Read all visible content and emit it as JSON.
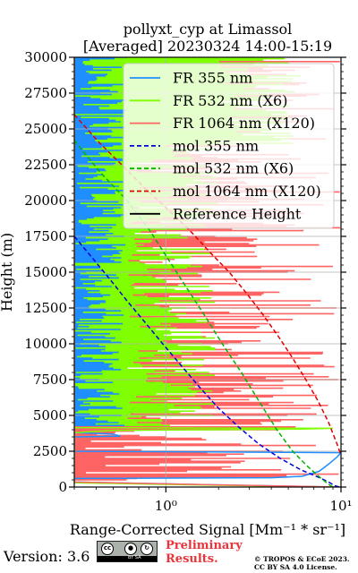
{
  "chart_data": {
    "type": "line",
    "title_line1": "pollyxt_cyp at Limassol",
    "title_line2": "[Averaged] 20230324 14:00-15:19",
    "xlabel": "Range-Corrected Signal [Mm⁻¹ * sr⁻¹]",
    "ylabel": "Height (m)",
    "xscale": "log",
    "xlim": [
      0.3,
      10
    ],
    "ylim": [
      0,
      30000
    ],
    "x_ticks": [
      {
        "value": 1,
        "label": "10⁰"
      },
      {
        "value": 10,
        "label": "10¹"
      }
    ],
    "y_ticks": [
      0,
      2500,
      5000,
      7500,
      10000,
      12500,
      15000,
      17500,
      20000,
      22500,
      25000,
      27500,
      30000
    ],
    "grid": true,
    "legend_position": "upper-right",
    "series": [
      {
        "name": "FR 355 nm",
        "color": "#1f8fff",
        "style": "solid",
        "points": [
          [
            9.5,
            0
          ],
          [
            2,
            150
          ],
          [
            0.3,
            350
          ],
          [
            0.3,
            600
          ],
          [
            4,
            650
          ],
          [
            6,
            750
          ],
          [
            7.5,
            1100
          ],
          [
            8.5,
            1600
          ],
          [
            9.5,
            2100
          ],
          [
            10,
            2400
          ],
          [
            0.3,
            2500
          ],
          [
            0.3,
            3500
          ],
          [
            0.55,
            3550
          ],
          [
            0.5,
            3700
          ],
          [
            0.3,
            3800
          ],
          [
            0.3,
            4000
          ],
          [
            0.3,
            30000
          ]
        ]
      },
      {
        "name": "FR 532 nm (X6)",
        "color": "#7fff00",
        "style": "solid",
        "points": [
          [
            9,
            0
          ],
          [
            1.5,
            150
          ],
          [
            0.3,
            300
          ],
          [
            0.3,
            3800
          ],
          [
            0.5,
            3950
          ],
          [
            1.8,
            4000
          ],
          [
            6,
            4050
          ],
          [
            9,
            4100
          ],
          [
            0.3,
            4150
          ],
          [
            0.3,
            30000
          ]
        ]
      },
      {
        "name": "FR 1064 nm (X120)",
        "color": "#ff6464",
        "style": "solid",
        "points": [
          [
            10,
            0
          ],
          [
            2,
            150
          ],
          [
            0.3,
            350
          ],
          [
            0.3,
            30000
          ]
        ]
      },
      {
        "name": "mol 355 nm",
        "color": "#0000dd",
        "style": "dashed",
        "points": [
          [
            0.3,
            17500
          ],
          [
            0.38,
            16000
          ],
          [
            0.48,
            14500
          ],
          [
            0.6,
            13000
          ],
          [
            0.76,
            11500
          ],
          [
            0.96,
            10000
          ],
          [
            1.22,
            8500
          ],
          [
            1.55,
            7000
          ],
          [
            2.0,
            5500
          ],
          [
            2.6,
            4200
          ],
          [
            3.4,
            3000
          ],
          [
            4.5,
            2000
          ],
          [
            5.9,
            1200
          ],
          [
            7.4,
            700
          ],
          [
            8.5,
            350
          ],
          [
            9.2,
            100
          ],
          [
            9.8,
            0
          ]
        ]
      },
      {
        "name": "mol 532 nm (X6)",
        "color": "#00b400",
        "style": "dashed",
        "points": [
          [
            0.3,
            24200
          ],
          [
            0.42,
            22000
          ],
          [
            0.6,
            20000
          ],
          [
            0.8,
            18000
          ],
          [
            1.02,
            16000
          ],
          [
            1.3,
            14000
          ],
          [
            1.66,
            12000
          ],
          [
            2.1,
            10000
          ],
          [
            2.7,
            8000
          ],
          [
            3.4,
            6000
          ],
          [
            4.3,
            4000
          ],
          [
            5.3,
            2500
          ],
          [
            6.5,
            1400
          ],
          [
            7.7,
            600
          ],
          [
            8.6,
            150
          ],
          [
            9.0,
            0
          ]
        ]
      },
      {
        "name": "mol 1064 nm (X120)",
        "color": "#dd0000",
        "style": "dashed",
        "points": [
          [
            0.3,
            26000
          ],
          [
            0.42,
            24000
          ],
          [
            0.56,
            22500
          ],
          [
            0.74,
            21000
          ],
          [
            1.0,
            19500
          ],
          [
            1.35,
            18000
          ],
          [
            1.75,
            16500
          ],
          [
            2.3,
            15000
          ],
          [
            2.9,
            13500
          ],
          [
            3.6,
            12000
          ],
          [
            4.4,
            10500
          ],
          [
            5.3,
            9000
          ],
          [
            6.3,
            7500
          ],
          [
            7.4,
            6000
          ],
          [
            8.5,
            4500
          ],
          [
            9.5,
            3000
          ],
          [
            10.5,
            1500
          ]
        ]
      },
      {
        "name": "Reference Height",
        "color": "#000000",
        "style": "solid",
        "points": []
      }
    ],
    "noise_bands": [
      {
        "color": "#1f8fff",
        "y_range": [
          4200,
          30000
        ],
        "x_max": [
          0.3,
          0.6
        ]
      },
      {
        "color": "#7fff00",
        "y_range": [
          4200,
          24000
        ],
        "x_max": [
          0.6,
          2.0
        ]
      },
      {
        "color": "#7fff00",
        "y_range": [
          24000,
          30000
        ],
        "x_max": [
          2.0,
          6.0
        ]
      },
      {
        "color": "#ff6464",
        "y_range": [
          400,
          30000
        ],
        "x_max": [
          0.3,
          10
        ]
      }
    ]
  },
  "footer": {
    "version": "Version: 3.6",
    "cc_text": "BY SA",
    "preliminary_line1": "Preliminary",
    "preliminary_line2": "Results.",
    "copyright_line1": "© TROPOS & ECoE 2023.",
    "copyright_line2": "CC BY SA 4.0 License."
  }
}
